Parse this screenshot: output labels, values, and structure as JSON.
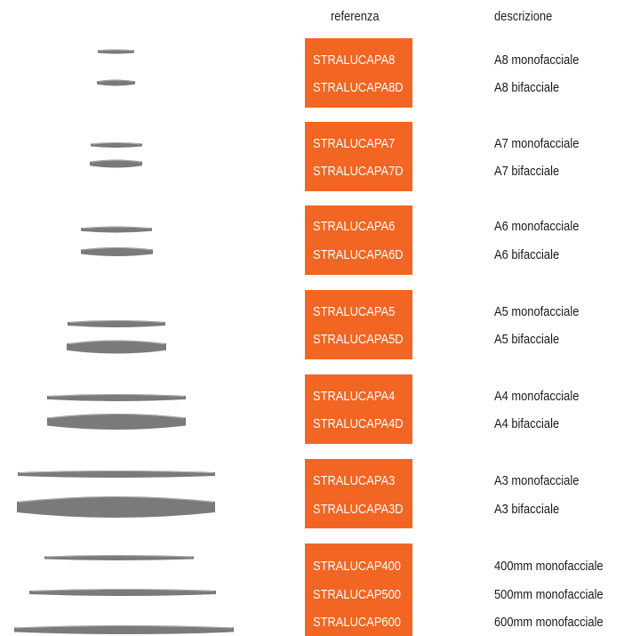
{
  "header": {
    "reference": "referenza",
    "description": "descrizione"
  },
  "groups": [
    {
      "rows": [
        {
          "code": "STRALUCAPA8",
          "desc": "A8 monofacciale"
        },
        {
          "code": "STRALUCAPA8D",
          "desc": "A8 bifacciale"
        }
      ]
    },
    {
      "rows": [
        {
          "code": "STRALUCAPA7",
          "desc": "A7 monofacciale"
        },
        {
          "code": "STRALUCAPA7D",
          "desc": "A7 bifacciale"
        }
      ]
    },
    {
      "rows": [
        {
          "code": "STRALUCAPA6",
          "desc": "A6 monofacciale"
        },
        {
          "code": "STRALUCAPA6D",
          "desc": "A6 bifacciale"
        }
      ]
    },
    {
      "rows": [
        {
          "code": "STRALUCAPA5",
          "desc": "A5 monofacciale"
        },
        {
          "code": "STRALUCAPA5D",
          "desc": "A5 bifacciale"
        }
      ]
    },
    {
      "rows": [
        {
          "code": "STRALUCAPA4",
          "desc": "A4 monofacciale"
        },
        {
          "code": "STRALUCAPA4D",
          "desc": "A4 bifacciale"
        }
      ]
    },
    {
      "rows": [
        {
          "code": "STRALUCAPA3",
          "desc": "A3 monofacciale"
        },
        {
          "code": "STRALUCAPA3D",
          "desc": "A3 bifacciale"
        }
      ]
    },
    {
      "rows": [
        {
          "code": "STRALUCAP400",
          "desc": "400mm monofacciale"
        },
        {
          "code": "STRALUCAP500",
          "desc": "500mm monofacciale"
        },
        {
          "code": "STRALUCAP600",
          "desc": "600mm monofacciale"
        }
      ]
    }
  ],
  "colors": {
    "accent": "#f26522",
    "profile": "#7a7a7a"
  }
}
